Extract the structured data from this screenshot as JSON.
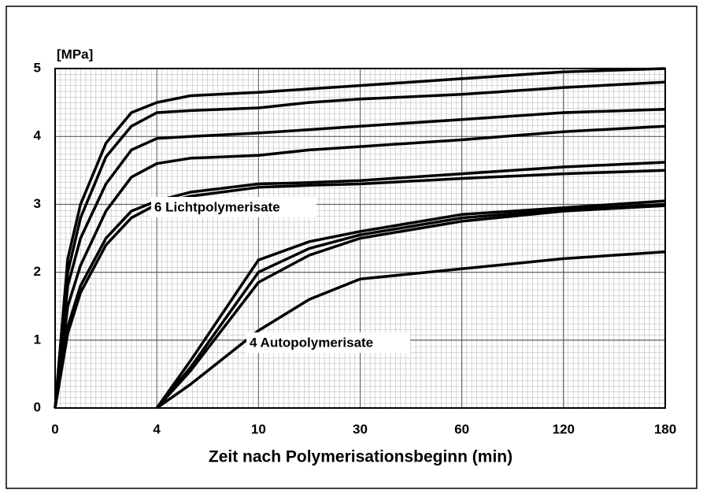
{
  "chart_data": {
    "type": "line",
    "y_label": "[MPa]",
    "x_label": "Zeit nach Polymerisationsbeginn (min)",
    "x_scale": "equal-spaced-ticks",
    "x": [
      0,
      0.5,
      1,
      2,
      3,
      4,
      6,
      10,
      20,
      30,
      60,
      120,
      180
    ],
    "series": [
      {
        "color": "#000000",
        "values": [
          0,
          2.2,
          3.0,
          3.9,
          4.35,
          4.5,
          4.6,
          4.65,
          4.7,
          4.75,
          4.85,
          4.95,
          5.0
        ]
      },
      {
        "color": "#000000",
        "values": [
          0,
          2.0,
          2.8,
          3.7,
          4.15,
          4.35,
          4.38,
          4.42,
          4.5,
          4.55,
          4.62,
          4.72,
          4.8
        ]
      },
      {
        "color": "#000000",
        "values": [
          0,
          1.8,
          2.5,
          3.3,
          3.8,
          3.97,
          4.0,
          4.05,
          4.1,
          4.15,
          4.25,
          4.35,
          4.4
        ]
      },
      {
        "color": "#000000",
        "values": [
          0,
          1.5,
          2.1,
          2.9,
          3.4,
          3.6,
          3.68,
          3.72,
          3.8,
          3.85,
          3.95,
          4.07,
          4.15
        ]
      },
      {
        "color": "#000000",
        "values": [
          0,
          1.2,
          1.8,
          2.5,
          2.9,
          3.05,
          3.18,
          3.3,
          3.32,
          3.35,
          3.45,
          3.55,
          3.62
        ]
      },
      {
        "color": "#000000",
        "values": [
          0,
          1.1,
          1.7,
          2.4,
          2.8,
          3.0,
          3.12,
          3.25,
          3.28,
          3.3,
          3.38,
          3.45,
          3.5
        ]
      },
      {
        "color": "#000000",
        "values": [
          null,
          null,
          null,
          null,
          null,
          0,
          0.7,
          2.18,
          2.45,
          2.6,
          2.85,
          2.95,
          3.05
        ]
      },
      {
        "color": "#000000",
        "values": [
          null,
          null,
          null,
          null,
          null,
          0,
          0.6,
          2.0,
          2.35,
          2.55,
          2.8,
          2.92,
          3.0
        ]
      },
      {
        "color": "#000000",
        "values": [
          null,
          null,
          null,
          null,
          null,
          0,
          0.55,
          1.85,
          2.25,
          2.5,
          2.75,
          2.9,
          2.98
        ]
      },
      {
        "color": "#000000",
        "values": [
          null,
          null,
          null,
          null,
          null,
          0,
          0.35,
          1.14,
          1.6,
          1.9,
          2.05,
          2.2,
          2.3
        ]
      }
    ],
    "annotations": [
      "6 Lichtpolymerisate",
      "4 Autopolymerisate"
    ],
    "xlim": [
      0,
      180
    ],
    "xticks": [
      0,
      4,
      10,
      30,
      60,
      120,
      180
    ],
    "ylim": [
      0,
      5
    ],
    "yticks": [
      0,
      1,
      2,
      3,
      4,
      5
    ],
    "grid": true
  }
}
